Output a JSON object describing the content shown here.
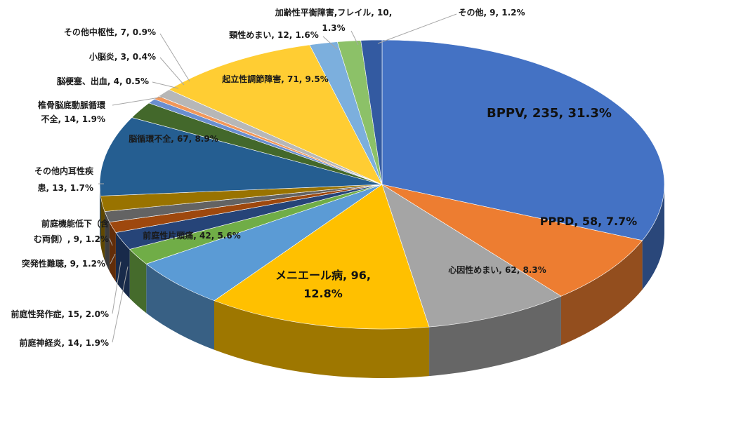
{
  "chart_data": {
    "type": "pie",
    "title": "",
    "slices": [
      {
        "name": "BPPV",
        "value": 235,
        "percent": "31.3%",
        "color": "#4472c4",
        "label": [
          "BPPV, 235, 31.3%"
        ]
      },
      {
        "name": "PPPD",
        "value": 58,
        "percent": "7.7%",
        "color": "#ed7d31",
        "label": [
          "PPPD, 58, 7.7%"
        ]
      },
      {
        "name": "心因性めまい",
        "value": 62,
        "percent": "8.3%",
        "color": "#a5a5a5",
        "label": [
          "心因性めまい, 62, 8.3%"
        ]
      },
      {
        "name": "メニエール病",
        "value": 96,
        "percent": "12.8%",
        "color": "#ffc000",
        "label": [
          "メニエール病, 96,",
          "12.8%"
        ]
      },
      {
        "name": "前庭性片頭痛",
        "value": 42,
        "percent": "5.6%",
        "color": "#5b9bd5",
        "label": [
          "前庭性片頭痛, 42, 5.6%"
        ]
      },
      {
        "name": "前庭神経炎",
        "value": 14,
        "percent": "1.9%",
        "color": "#70ad47",
        "label": [
          "前庭神経炎, 14, 1.9%"
        ]
      },
      {
        "name": "前庭性発作症",
        "value": 15,
        "percent": "2.0%",
        "color": "#264478",
        "label": [
          "前庭性発作症, 15, 2.0%"
        ]
      },
      {
        "name": "突発性難聴",
        "value": 9,
        "percent": "1.2%",
        "color": "#9e480e",
        "label": [
          "突発性難聴, 9, 1.2%"
        ]
      },
      {
        "name": "前庭機能低下（含む両側）",
        "value": 9,
        "percent": "1.2%",
        "color": "#636363",
        "label": [
          "前庭機能低下（含",
          "む両側）, 9, 1.2%"
        ]
      },
      {
        "name": "その他内耳性疾患",
        "value": 13,
        "percent": "1.7%",
        "color": "#997300",
        "label": [
          "その他内耳性疾",
          "患, 13, 1.7%"
        ]
      },
      {
        "name": "脳循環不全",
        "value": 67,
        "percent": "8.9%",
        "color": "#255e91",
        "label": [
          "脳循環不全, 67, 8.9%"
        ]
      },
      {
        "name": "椎骨脳底動脈循環不全",
        "value": 14,
        "percent": "1.9%",
        "color": "#43682b",
        "label": [
          "椎骨脳底動脈循環",
          "不全, 14, 1.9%"
        ]
      },
      {
        "name": "脳梗塞、出血",
        "value": 4,
        "percent": "0.5%",
        "color": "#698ed0",
        "label": [
          "脳梗塞、出血, 4, 0.5%"
        ]
      },
      {
        "name": "小脳炎",
        "value": 3,
        "percent": "0.4%",
        "color": "#f1975a",
        "label": [
          "小脳炎, 3, 0.4%"
        ]
      },
      {
        "name": "その他中枢性",
        "value": 7,
        "percent": "0.9%",
        "color": "#b7b7b7",
        "label": [
          "その他中枢性, 7, 0.9%"
        ]
      },
      {
        "name": "起立性調節障害",
        "value": 71,
        "percent": "9.5%",
        "color": "#ffcd33",
        "label": [
          "起立性調節障害, 71, 9.5%"
        ]
      },
      {
        "name": "頸性めまい",
        "value": 12,
        "percent": "1.6%",
        "color": "#7cafdd",
        "label": [
          "頸性めまい, 12, 1.6%"
        ]
      },
      {
        "name": "加齢性平衡障害,フレイル",
        "value": 10,
        "percent": "1.3%",
        "color": "#8cc168",
        "label": [
          "加齢性平衡障害,フレイル, 10,",
          "1.3%"
        ]
      },
      {
        "name": "その他",
        "value": 9,
        "percent": "1.2%",
        "color": "#335aa1",
        "label": [
          "その他, 9, 1.2%"
        ]
      }
    ]
  }
}
